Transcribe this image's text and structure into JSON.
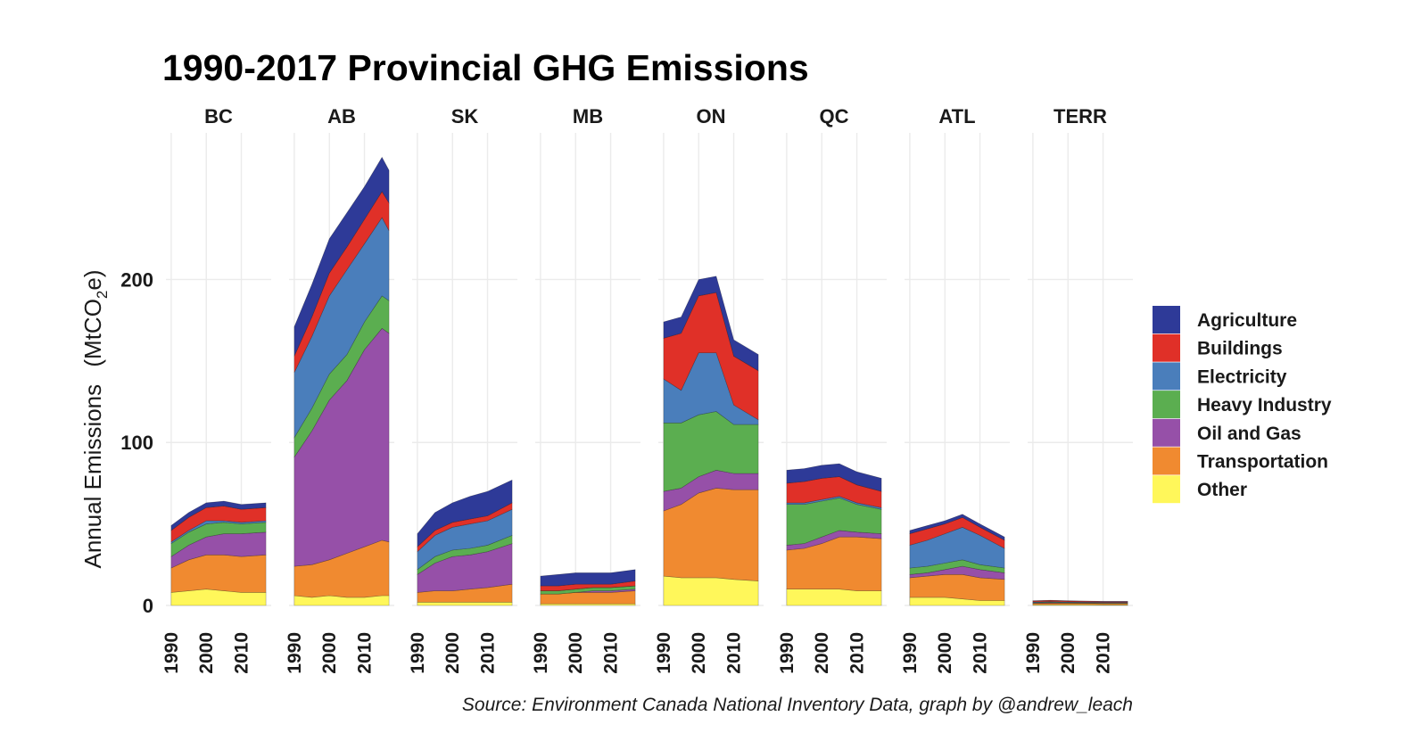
{
  "chart_data": {
    "type": "area",
    "title": "1990-2017 Provincial GHG Emissions",
    "ylabel": "Annual Emissions",
    "ylabel_unit_parts": [
      "(MtCO",
      "2",
      "e)"
    ],
    "ylim": [
      0,
      290
    ],
    "yticks": [
      0,
      100,
      200
    ],
    "xticks": [
      1990,
      2000,
      2010
    ],
    "caption": "Source: Environment Canada National Inventory Data, graph by @andrew_leach",
    "legend_position": "right",
    "grid": true,
    "stack_order": [
      "Other",
      "Transportation",
      "Oil and Gas",
      "Heavy Industry",
      "Electricity",
      "Buildings",
      "Agriculture"
    ],
    "legend": [
      {
        "name": "Agriculture",
        "color": "#2E3A98"
      },
      {
        "name": "Buildings",
        "color": "#E03028"
      },
      {
        "name": "Electricity",
        "color": "#4A7EBB"
      },
      {
        "name": "Heavy Industry",
        "color": "#5BAE50"
      },
      {
        "name": "Oil and Gas",
        "color": "#9650A8"
      },
      {
        "name": "Transportation",
        "color": "#F08A30"
      },
      {
        "name": "Other",
        "color": "#FFF75A"
      }
    ],
    "panels": [
      {
        "name": "BC",
        "years": [
          1990,
          1995,
          2000,
          2005,
          2010,
          2017
        ],
        "series": {
          "Other": [
            8,
            9,
            10,
            9,
            8,
            8
          ],
          "Transportation": [
            15,
            19,
            21,
            22,
            22,
            23
          ],
          "Oil and Gas": [
            7,
            9,
            11,
            13,
            14,
            14
          ],
          "Heavy Industry": [
            8,
            8,
            8,
            7,
            6,
            6
          ],
          "Electricity": [
            1,
            1,
            2,
            1,
            1,
            1
          ],
          "Buildings": [
            7,
            8,
            8,
            9,
            8,
            8
          ],
          "Agriculture": [
            3,
            3,
            3,
            3,
            3,
            3
          ]
        }
      },
      {
        "name": "AB",
        "years": [
          1990,
          1995,
          2000,
          2005,
          2010,
          2015,
          2017
        ],
        "series": {
          "Other": [
            6,
            5,
            6,
            5,
            5,
            6,
            6
          ],
          "Transportation": [
            18,
            20,
            22,
            27,
            31,
            34,
            33
          ],
          "Oil and Gas": [
            67,
            82,
            98,
            106,
            121,
            130,
            128
          ],
          "Heavy Industry": [
            12,
            14,
            16,
            16,
            17,
            20,
            20
          ],
          "Electricity": [
            40,
            44,
            48,
            52,
            48,
            48,
            43
          ],
          "Buildings": [
            10,
            12,
            14,
            14,
            15,
            16,
            17
          ],
          "Agriculture": [
            18,
            20,
            21,
            21,
            20,
            21,
            20
          ]
        }
      },
      {
        "name": "SK",
        "years": [
          1990,
          1995,
          2000,
          2005,
          2010,
          2017
        ],
        "series": {
          "Other": [
            2,
            2,
            2,
            2,
            2,
            2
          ],
          "Transportation": [
            6,
            7,
            7,
            8,
            9,
            11
          ],
          "Oil and Gas": [
            11,
            17,
            21,
            21,
            22,
            25
          ],
          "Heavy Industry": [
            3,
            4,
            4,
            4,
            4,
            5
          ],
          "Electricity": [
            11,
            13,
            14,
            15,
            15,
            16
          ],
          "Buildings": [
            3,
            3,
            3,
            3,
            3,
            4
          ],
          "Agriculture": [
            8,
            11,
            12,
            14,
            15,
            14
          ]
        }
      },
      {
        "name": "MB",
        "years": [
          1990,
          1995,
          2000,
          2005,
          2010,
          2017
        ],
        "series": {
          "Other": [
            1,
            1,
            1,
            1,
            1,
            1
          ],
          "Transportation": [
            6,
            6,
            7,
            7,
            7,
            8
          ],
          "Oil and Gas": [
            0,
            0,
            0,
            1,
            1,
            1
          ],
          "Heavy Industry": [
            2,
            2,
            2,
            2,
            2,
            2
          ],
          "Electricity": [
            0,
            0,
            0,
            0,
            0,
            0
          ],
          "Buildings": [
            3,
            3,
            3,
            2,
            2,
            3
          ],
          "Agriculture": [
            6,
            7,
            7,
            7,
            7,
            7
          ]
        }
      },
      {
        "name": "ON",
        "years": [
          1990,
          1995,
          2000,
          2005,
          2010,
          2017
        ],
        "series": {
          "Other": [
            18,
            17,
            17,
            17,
            16,
            15
          ],
          "Transportation": [
            40,
            45,
            52,
            55,
            55,
            56
          ],
          "Oil and Gas": [
            12,
            10,
            10,
            11,
            10,
            10
          ],
          "Heavy Industry": [
            42,
            40,
            38,
            36,
            30,
            30
          ],
          "Electricity": [
            27,
            20,
            38,
            36,
            12,
            3
          ],
          "Buildings": [
            25,
            35,
            35,
            37,
            30,
            30
          ],
          "Agriculture": [
            10,
            10,
            10,
            10,
            10,
            10
          ]
        }
      },
      {
        "name": "QC",
        "years": [
          1990,
          1995,
          2000,
          2005,
          2010,
          2017
        ],
        "series": {
          "Other": [
            10,
            10,
            10,
            10,
            9,
            9
          ],
          "Transportation": [
            24,
            25,
            28,
            32,
            33,
            32
          ],
          "Oil and Gas": [
            3,
            3,
            4,
            4,
            3,
            3
          ],
          "Heavy Industry": [
            25,
            24,
            22,
            20,
            17,
            15
          ],
          "Electricity": [
            1,
            1,
            1,
            1,
            1,
            1
          ],
          "Buildings": [
            12,
            13,
            13,
            12,
            11,
            10
          ],
          "Agriculture": [
            8,
            8,
            8,
            8,
            8,
            8
          ]
        }
      },
      {
        "name": "ATL",
        "years": [
          1990,
          1995,
          2000,
          2005,
          2010,
          2017
        ],
        "series": {
          "Other": [
            5,
            5,
            5,
            4,
            3,
            3
          ],
          "Transportation": [
            12,
            13,
            14,
            15,
            14,
            13
          ],
          "Oil and Gas": [
            2,
            2,
            3,
            5,
            5,
            4
          ],
          "Heavy Industry": [
            4,
            4,
            4,
            4,
            3,
            3
          ],
          "Electricity": [
            14,
            16,
            18,
            20,
            18,
            12
          ],
          "Buildings": [
            7,
            7,
            6,
            6,
            5,
            5
          ],
          "Agriculture": [
            2,
            2,
            2,
            2,
            2,
            2
          ]
        }
      },
      {
        "name": "TERR",
        "years": [
          1990,
          1995,
          2000,
          2005,
          2010,
          2017
        ],
        "series": {
          "Other": [
            0.5,
            0.5,
            0.5,
            0.5,
            0.4,
            0.4
          ],
          "Transportation": [
            0.8,
            0.9,
            0.9,
            0.8,
            0.8,
            0.8
          ],
          "Oil and Gas": [
            0.2,
            0.3,
            0.1,
            0.1,
            0.1,
            0.1
          ],
          "Heavy Industry": [
            0.3,
            0.3,
            0.3,
            0.3,
            0.3,
            0.3
          ],
          "Electricity": [
            0.4,
            0.4,
            0.4,
            0.3,
            0.3,
            0.3
          ],
          "Buildings": [
            0.6,
            0.7,
            0.6,
            0.6,
            0.5,
            0.5
          ],
          "Agriculture": [
            0.1,
            0.1,
            0.1,
            0.1,
            0.1,
            0.1
          ]
        }
      }
    ]
  }
}
